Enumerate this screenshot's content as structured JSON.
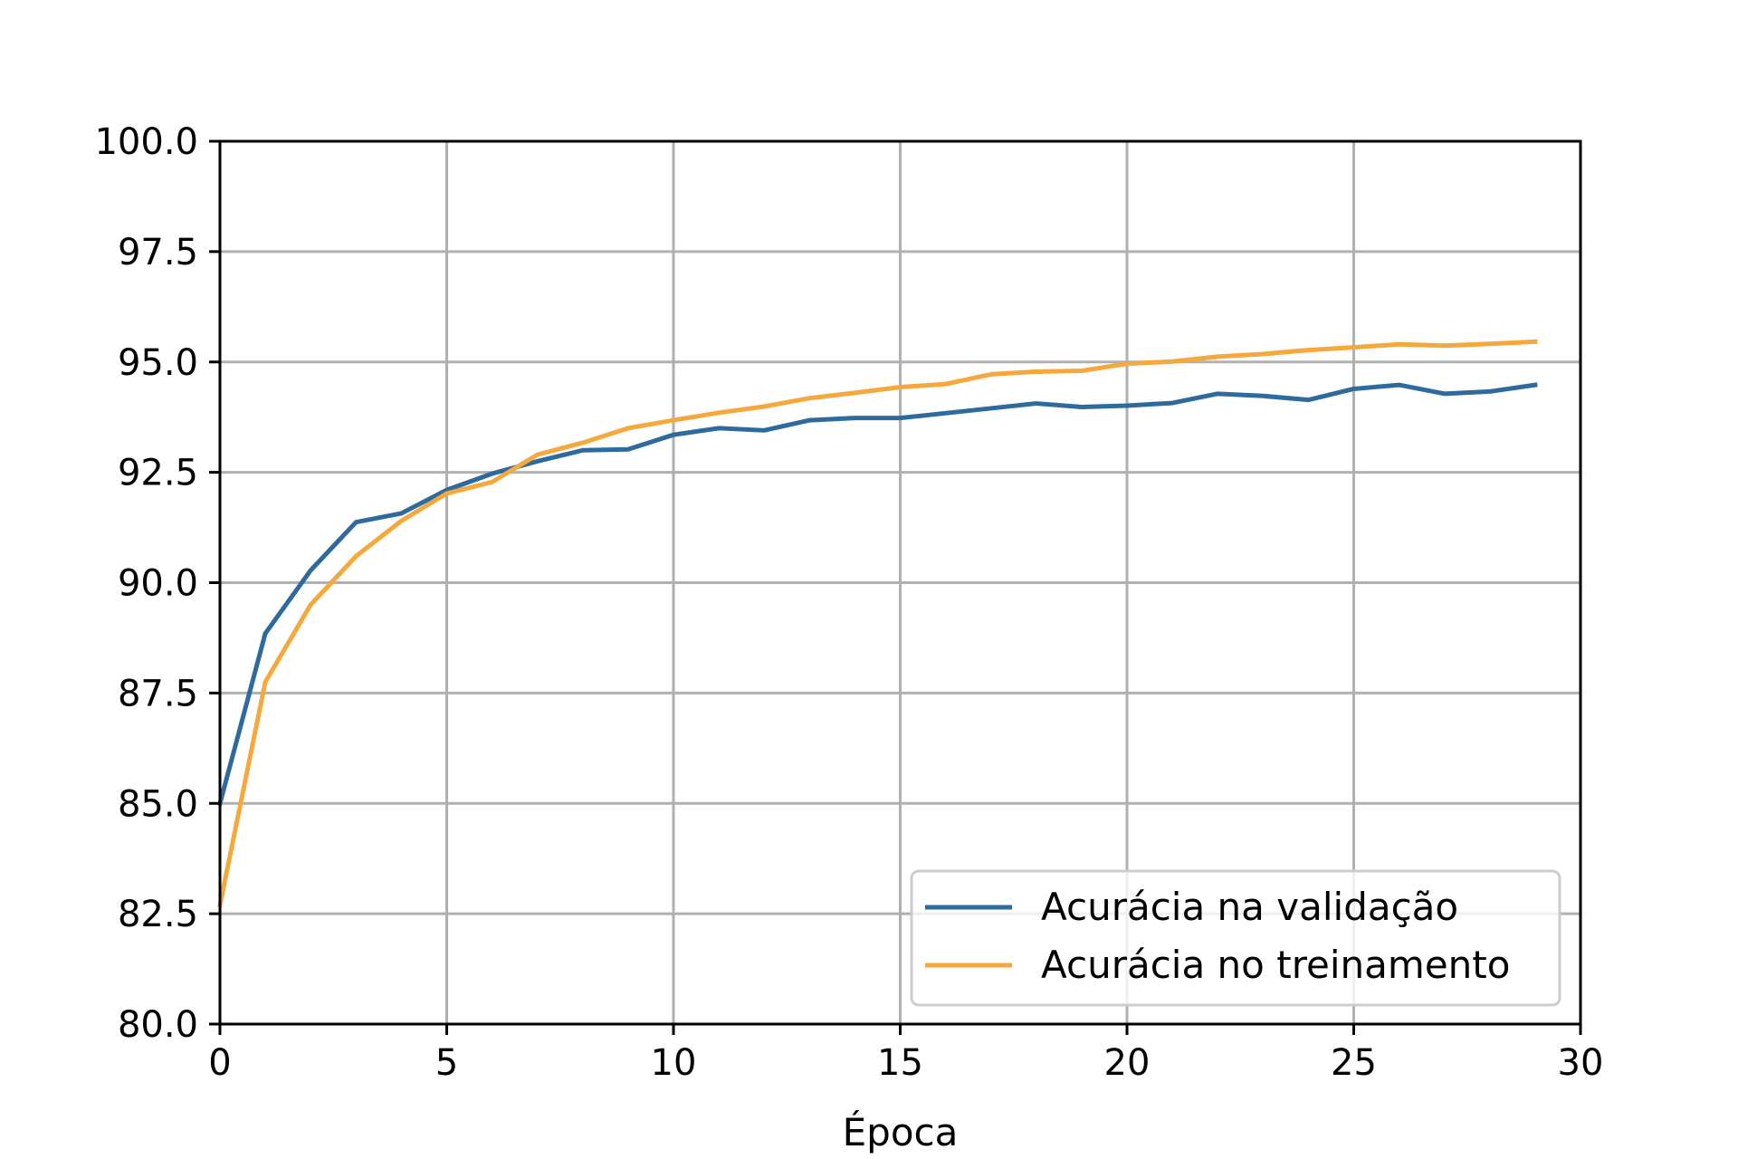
{
  "chart_data": {
    "type": "line",
    "title": "",
    "xlabel": "Época",
    "ylabel": "",
    "xlim": [
      0,
      30
    ],
    "ylim": [
      80.0,
      100.0
    ],
    "xticks": [
      0,
      5,
      10,
      15,
      20,
      25,
      30
    ],
    "xtick_labels": [
      "0",
      "5",
      "10",
      "15",
      "20",
      "25",
      "30"
    ],
    "yticks": [
      80.0,
      82.5,
      85.0,
      87.5,
      90.0,
      92.5,
      95.0,
      97.5,
      100.0
    ],
    "ytick_labels": [
      "80.0",
      "82.5",
      "85.0",
      "87.5",
      "90.0",
      "92.5",
      "95.0",
      "97.5",
      "100.0"
    ],
    "grid": true,
    "legend_position": "lower-right",
    "x": [
      0,
      1,
      2,
      3,
      4,
      5,
      6,
      7,
      8,
      9,
      10,
      11,
      12,
      13,
      14,
      15,
      16,
      17,
      18,
      19,
      20,
      21,
      22,
      23,
      24,
      25,
      26,
      27,
      28,
      29
    ],
    "series": [
      {
        "name": "Acurácia na validação",
        "color": "#2e6a9d",
        "values": [
          85.0,
          88.85,
          90.28,
          91.37,
          91.57,
          92.1,
          92.47,
          92.75,
          93.0,
          93.02,
          93.35,
          93.5,
          93.45,
          93.68,
          93.73,
          93.73,
          93.84,
          93.95,
          94.06,
          93.98,
          94.01,
          94.07,
          94.28,
          94.23,
          94.14,
          94.39,
          94.48,
          94.28,
          94.33,
          94.48
        ]
      },
      {
        "name": "Acurácia no treinamento",
        "color": "#f5a83c",
        "values": [
          82.7,
          87.75,
          89.5,
          90.6,
          91.4,
          92.02,
          92.28,
          92.9,
          93.17,
          93.5,
          93.68,
          93.85,
          93.99,
          94.18,
          94.3,
          94.43,
          94.5,
          94.72,
          94.78,
          94.8,
          94.96,
          95.01,
          95.12,
          95.18,
          95.27,
          95.33,
          95.4,
          95.37,
          95.41,
          95.46
        ]
      }
    ]
  }
}
